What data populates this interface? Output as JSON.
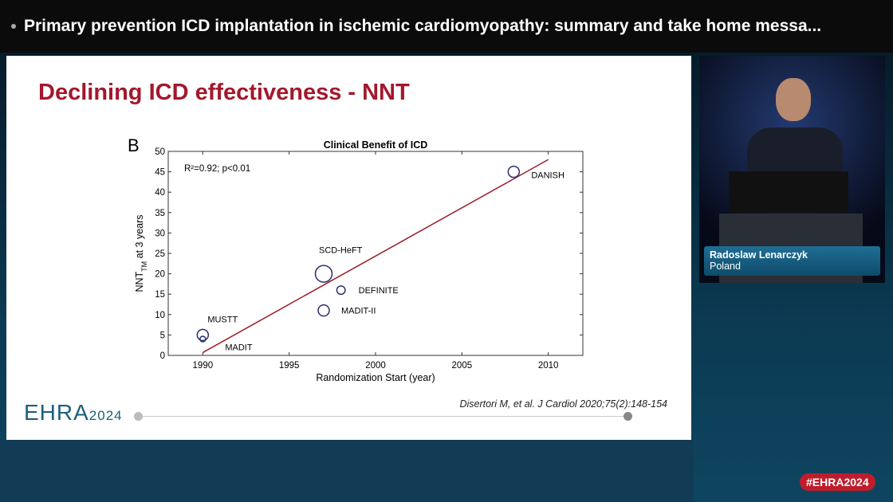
{
  "header": {
    "title": "Primary prevention ICD implantation in ischemic cardiomyopathy: summary and take home messa..."
  },
  "slide": {
    "title": "Declining ICD effectiveness - NNT",
    "panel_label": "B",
    "citation": "Disertori M, et al. J Cardiol 2020;75(2):148-154",
    "logo_main": "EHRA",
    "logo_year": "2024"
  },
  "speaker": {
    "name": "Radoslaw Lenarczyk",
    "country": "Poland"
  },
  "hashtag": "#EHRA2024",
  "colors": {
    "title": "#a3182c",
    "fit_line": "#9b1c2a",
    "markers": "#2a2f6e"
  },
  "chart_data": {
    "type": "scatter",
    "title": "Clinical Benefit of ICD",
    "xlabel": "Randomization Start (year)",
    "ylabel": "NNT",
    "ylabel_sub": "TM",
    "ylabel_rest": " at 3 years",
    "annotation": "R²=0.92; p<0.01",
    "xlim": [
      1988,
      2012
    ],
    "ylim": [
      0,
      50
    ],
    "xticks": [
      1990,
      1995,
      2000,
      2005,
      2010
    ],
    "yticks": [
      0,
      5,
      10,
      15,
      20,
      25,
      30,
      35,
      40,
      45,
      50
    ],
    "grid": false,
    "points": [
      {
        "label": "MUSTT",
        "x": 1990,
        "y": 5,
        "size": 2
      },
      {
        "label": "MADIT",
        "x": 1990,
        "y": 4,
        "size": 1
      },
      {
        "label": "SCD-HeFT",
        "x": 1997,
        "y": 20,
        "size": 3
      },
      {
        "label": "DEFINITE",
        "x": 1998,
        "y": 16,
        "size": 1.5
      },
      {
        "label": "MADIT-II",
        "x": 1997,
        "y": 11,
        "size": 2
      },
      {
        "label": "DANISH",
        "x": 2008,
        "y": 45,
        "size": 2
      }
    ],
    "fit_line": {
      "x": [
        1990,
        2010
      ],
      "y": [
        0.7,
        48
      ]
    }
  }
}
